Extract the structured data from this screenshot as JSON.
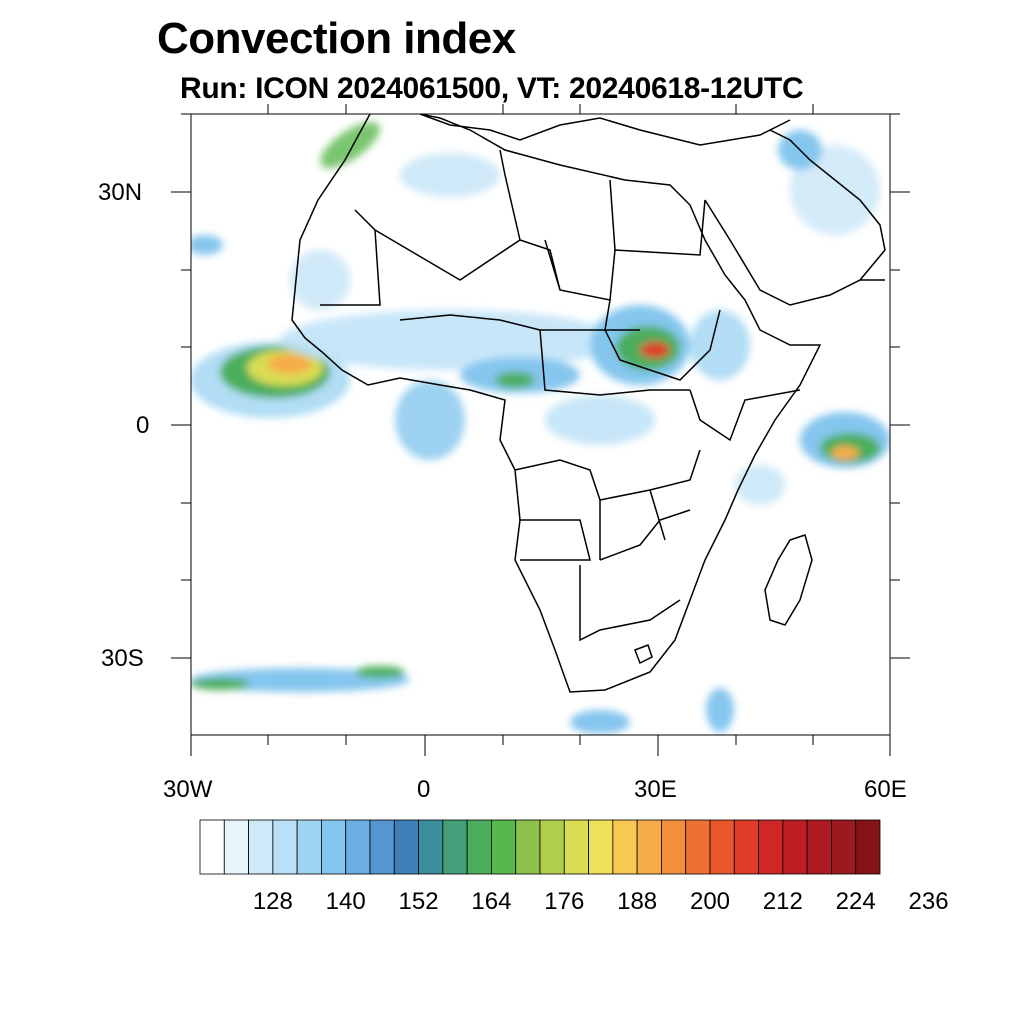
{
  "title": "Convection index",
  "subtitle": "Run: ICON 2024061500,  VT: 20240618-12UTC",
  "map": {
    "lon_labels": [
      "30W",
      "0",
      "30E",
      "60E"
    ],
    "lat_labels": [
      "30N",
      "0",
      "30S"
    ],
    "lon_range": [
      -30,
      60
    ],
    "lat_range": [
      -40,
      40
    ]
  },
  "colorbar": {
    "colors": [
      "#ffffff",
      "#e8f4fc",
      "#cfe9f8",
      "#b9e0f6",
      "#9fd5f3",
      "#85c6ee",
      "#6aaee3",
      "#5497d0",
      "#3d7fb8",
      "#3a8e9b",
      "#43a07a",
      "#4cae5c",
      "#58b84c",
      "#8cc24c",
      "#b1cf4c",
      "#dadd52",
      "#efe05a",
      "#f7c953",
      "#f6ac48",
      "#f28f3d",
      "#ee7133",
      "#e8562b",
      "#de3b28",
      "#cf2727",
      "#be1e24",
      "#ad1a22",
      "#9b1a1f",
      "#861414"
    ],
    "tick_labels": [
      "128",
      "140",
      "152",
      "164",
      "176",
      "188",
      "200",
      "212",
      "224",
      "236"
    ]
  }
}
